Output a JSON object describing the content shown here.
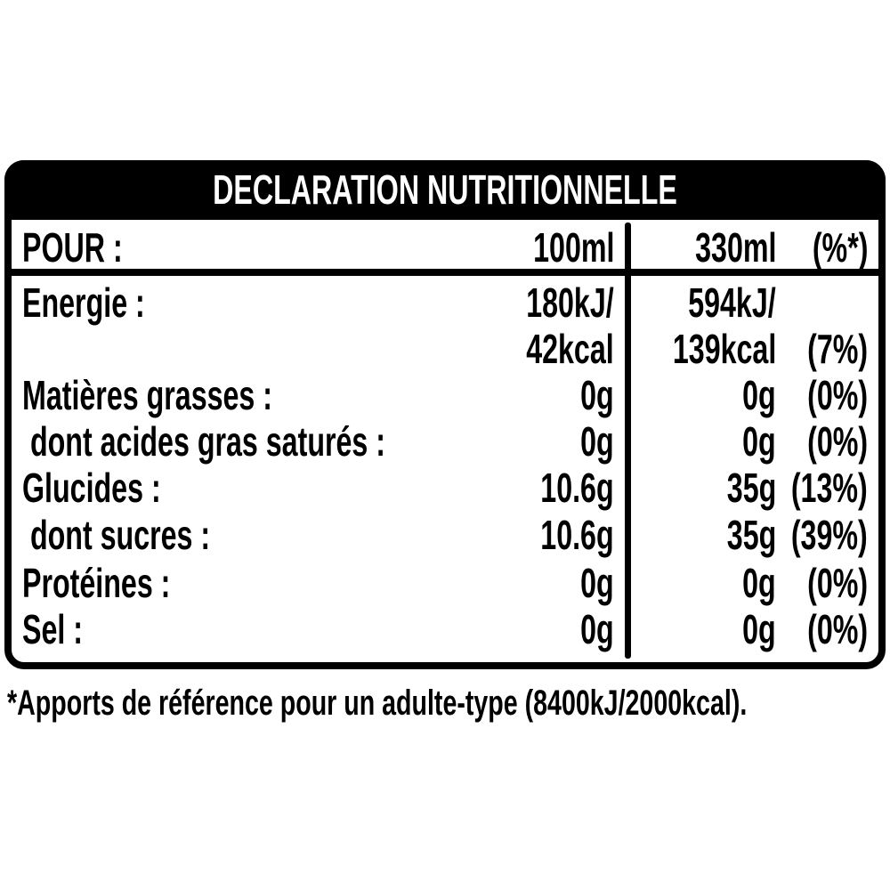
{
  "title": "DECLARATION NUTRITIONNELLE",
  "header": {
    "label": "POUR :",
    "col1": "100ml",
    "col2": "330ml",
    "col3": "(%*)"
  },
  "rows": [
    {
      "label": "Energie :",
      "col1": "180kJ/",
      "col2": "594kJ/",
      "col3": ""
    },
    {
      "label": "",
      "col1": "42kcal",
      "col2": "139kcal",
      "col3": "(7%)"
    },
    {
      "label": "Matières grasses :",
      "col1": "0g",
      "col2": "0g",
      "col3": "(0%)"
    },
    {
      "label": " dont acides gras saturés :",
      "col1": "0g",
      "col2": "0g",
      "col3": "(0%)"
    },
    {
      "label": "Glucides :",
      "col1": "10.6g",
      "col2": "35g",
      "col3": "(13%)"
    },
    {
      "label": " dont sucres :",
      "col1": "10.6g",
      "col2": "35g",
      "col3": "(39%)"
    },
    {
      "label": "Protéines :",
      "col1": "0g",
      "col2": "0g",
      "col3": "(0%)"
    },
    {
      "label": "Sel :",
      "col1": "0g",
      "col2": "0g",
      "col3": "(0%)"
    }
  ],
  "footnote": "*Apports de référence pour un adulte-type (8400kJ/2000kcal)."
}
